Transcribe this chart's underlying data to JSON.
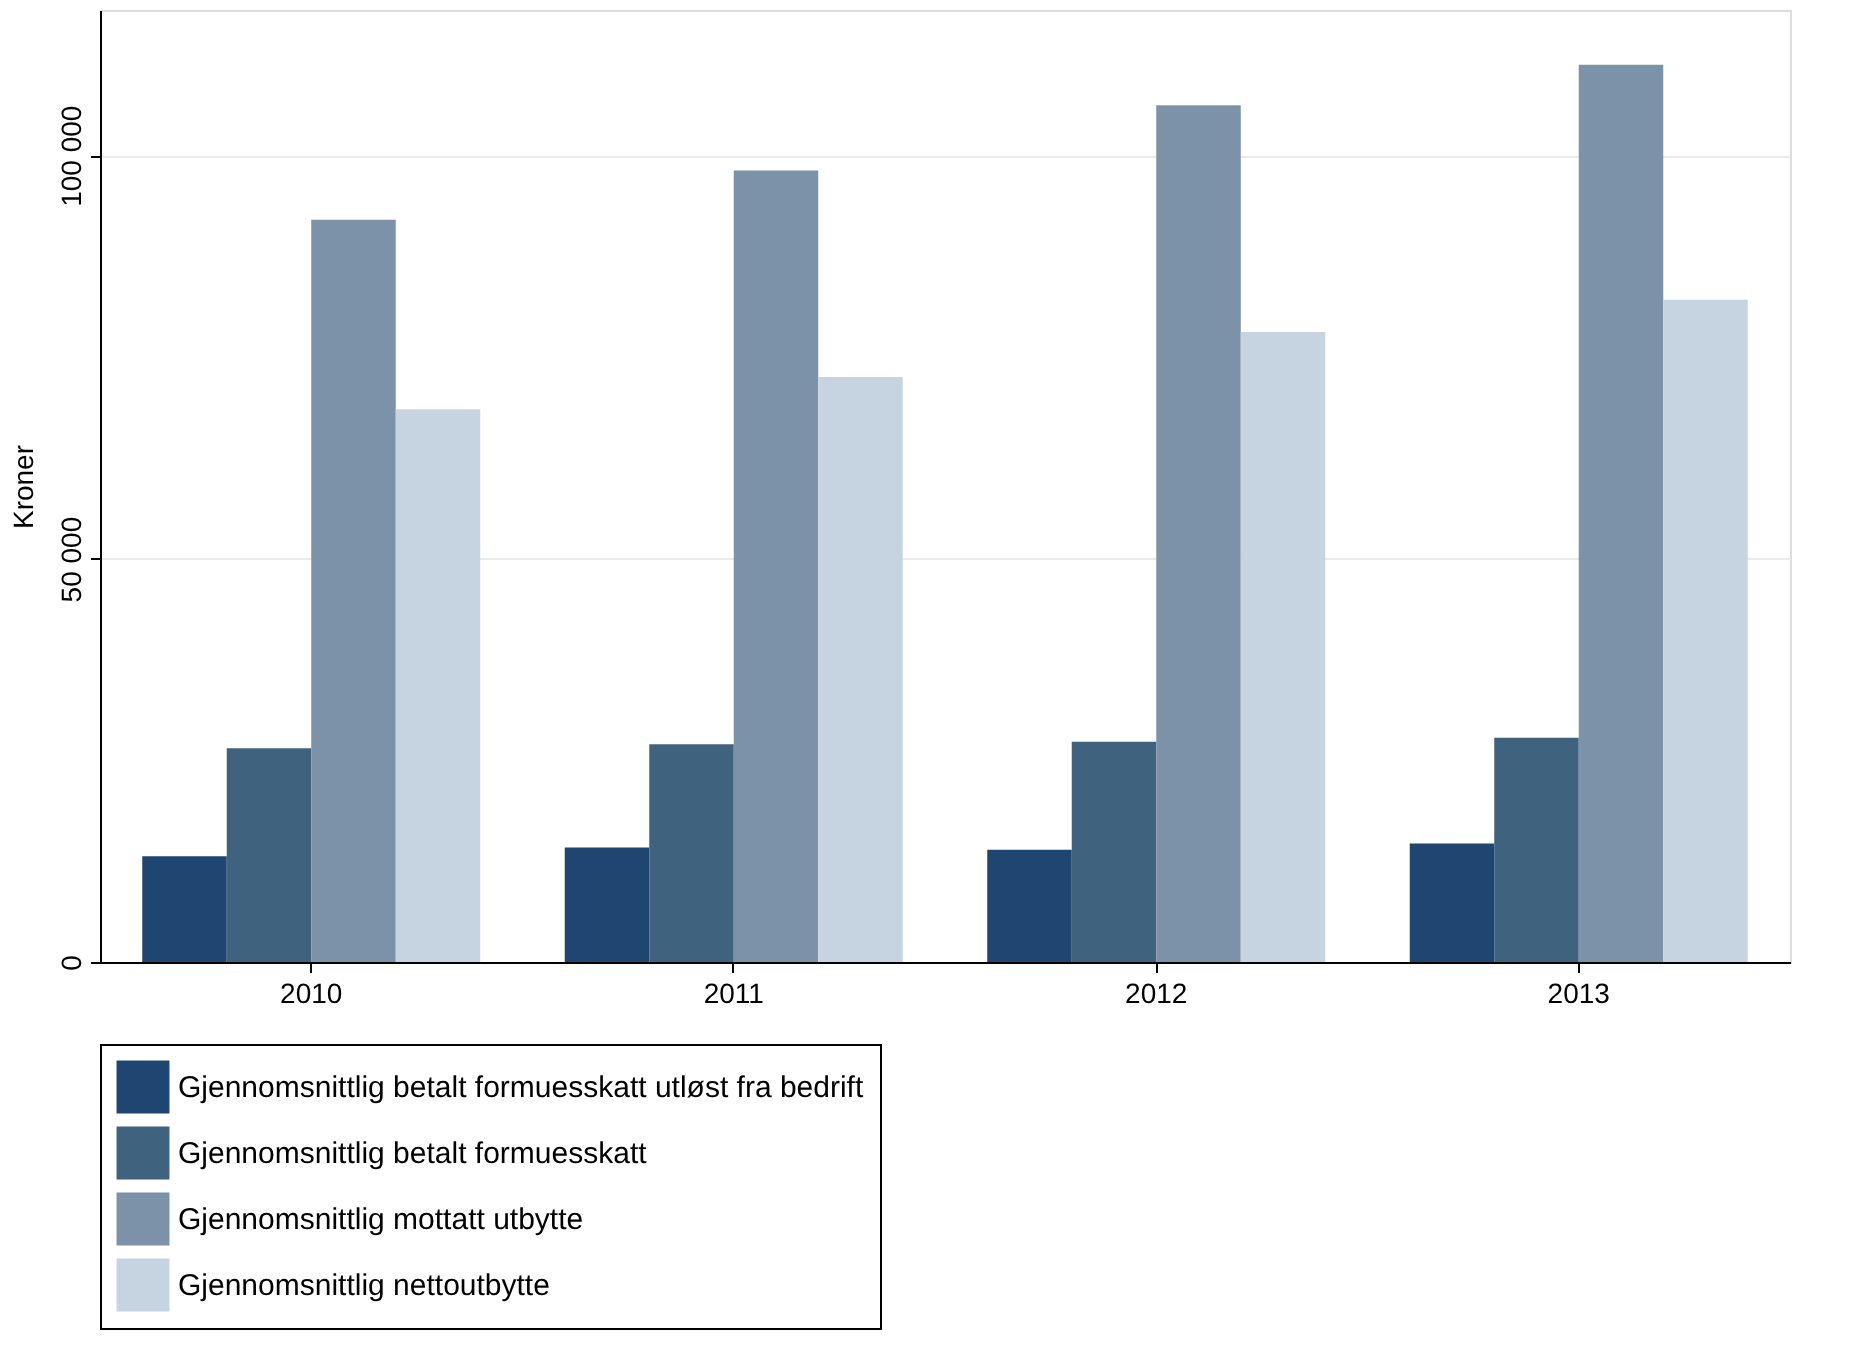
{
  "chart_data": {
    "type": "bar",
    "ylabel": "Kroner",
    "categories": [
      "2010",
      "2011",
      "2012",
      "2013"
    ],
    "series": [
      {
        "name": "Gjennomsnittlig betalt formuesskatt utløst fra bedrift",
        "color": "#1f4670",
        "values": [
          13100,
          14200,
          13900,
          14700
        ]
      },
      {
        "name": "Gjennomsnittlig betalt formuesskatt",
        "color": "#3f637e",
        "values": [
          26500,
          27000,
          27300,
          27800
        ]
      },
      {
        "name": "Gjennomsnittlig mottatt utbytte",
        "color": "#7b92a9",
        "values": [
          92000,
          98100,
          106200,
          111200
        ]
      },
      {
        "name": "Gjennomsnittlig nettoutbytte",
        "color": "#c6d4e1",
        "values": [
          68500,
          72500,
          78100,
          82100
        ]
      }
    ],
    "ylim": [
      0,
      118000
    ],
    "yticks": [
      {
        "value": 0,
        "label": "0"
      },
      {
        "value": 50000,
        "label": "50 000"
      },
      {
        "value": 100000,
        "label": "100 000"
      }
    ],
    "grid": "y",
    "legend": "bottom"
  }
}
